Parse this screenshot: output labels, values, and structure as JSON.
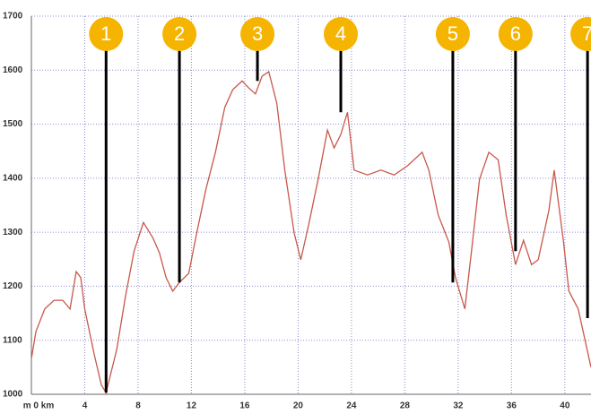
{
  "chart_data": {
    "type": "line",
    "color": "#c8584a",
    "x": [
      0,
      0.34,
      1.0,
      1.7,
      2.35,
      2.9,
      3.36,
      3.7,
      4.0,
      4.7,
      5.25,
      5.6,
      5.9,
      6.4,
      7.06,
      7.7,
      8.4,
      9.1,
      9.6,
      10.1,
      10.6,
      11.1,
      11.8,
      12.4,
      13.1,
      13.8,
      14.5,
      15.1,
      15.8,
      16.3,
      16.8,
      17.3,
      17.8,
      18.4,
      19.0,
      19.7,
      20.2,
      20.8,
      21.5,
      22.2,
      22.7,
      23.2,
      23.7,
      24.2,
      25.2,
      26.2,
      27.2,
      28.2,
      29.3,
      29.8,
      30.5,
      31.3,
      31.8,
      32.5,
      33.0,
      33.6,
      34.3,
      35.0,
      35.6,
      36.3,
      36.9,
      37.5,
      38.0,
      38.8,
      39.2,
      39.9,
      40.3,
      41.0,
      41.96
    ],
    "values": [
      1066,
      1116,
      1158,
      1174,
      1174,
      1158,
      1227,
      1216,
      1158,
      1075,
      1017,
      1003,
      1033,
      1083,
      1182,
      1265,
      1318,
      1290,
      1262,
      1216,
      1191,
      1207,
      1224,
      1299,
      1381,
      1448,
      1531,
      1564,
      1580,
      1567,
      1556,
      1589,
      1597,
      1539,
      1415,
      1299,
      1249,
      1315,
      1398,
      1489,
      1456,
      1481,
      1522,
      1415,
      1406,
      1415,
      1406,
      1423,
      1448,
      1415,
      1332,
      1282,
      1216,
      1158,
      1265,
      1398,
      1448,
      1434,
      1332,
      1240,
      1285,
      1240,
      1249,
      1340,
      1415,
      1282,
      1191,
      1158,
      1050
    ],
    "xlim": [
      0,
      41.96
    ],
    "ylim": [
      1000,
      1700
    ],
    "xticks": [
      {
        "value": 0,
        "label": "m 0 km"
      },
      4,
      8,
      12,
      16,
      20,
      24,
      28,
      32,
      36,
      40
    ],
    "yticks": [
      1000,
      1100,
      1200,
      1300,
      1400,
      1500,
      1600,
      1700
    ],
    "grid": true,
    "marker_color": "#f5b400",
    "annotations": [
      {
        "label": "1",
        "x": 5.6,
        "y": 1003
      },
      {
        "label": "2",
        "x": 11.1,
        "y": 1207
      },
      {
        "label": "3",
        "x": 16.95,
        "y": 1580
      },
      {
        "label": "4",
        "x": 23.2,
        "y": 1522
      },
      {
        "label": "5",
        "x": 31.6,
        "y": 1207
      },
      {
        "label": "6",
        "x": 36.3,
        "y": 1265
      },
      {
        "label": "7",
        "x": 41.7,
        "y": 1141
      }
    ]
  }
}
